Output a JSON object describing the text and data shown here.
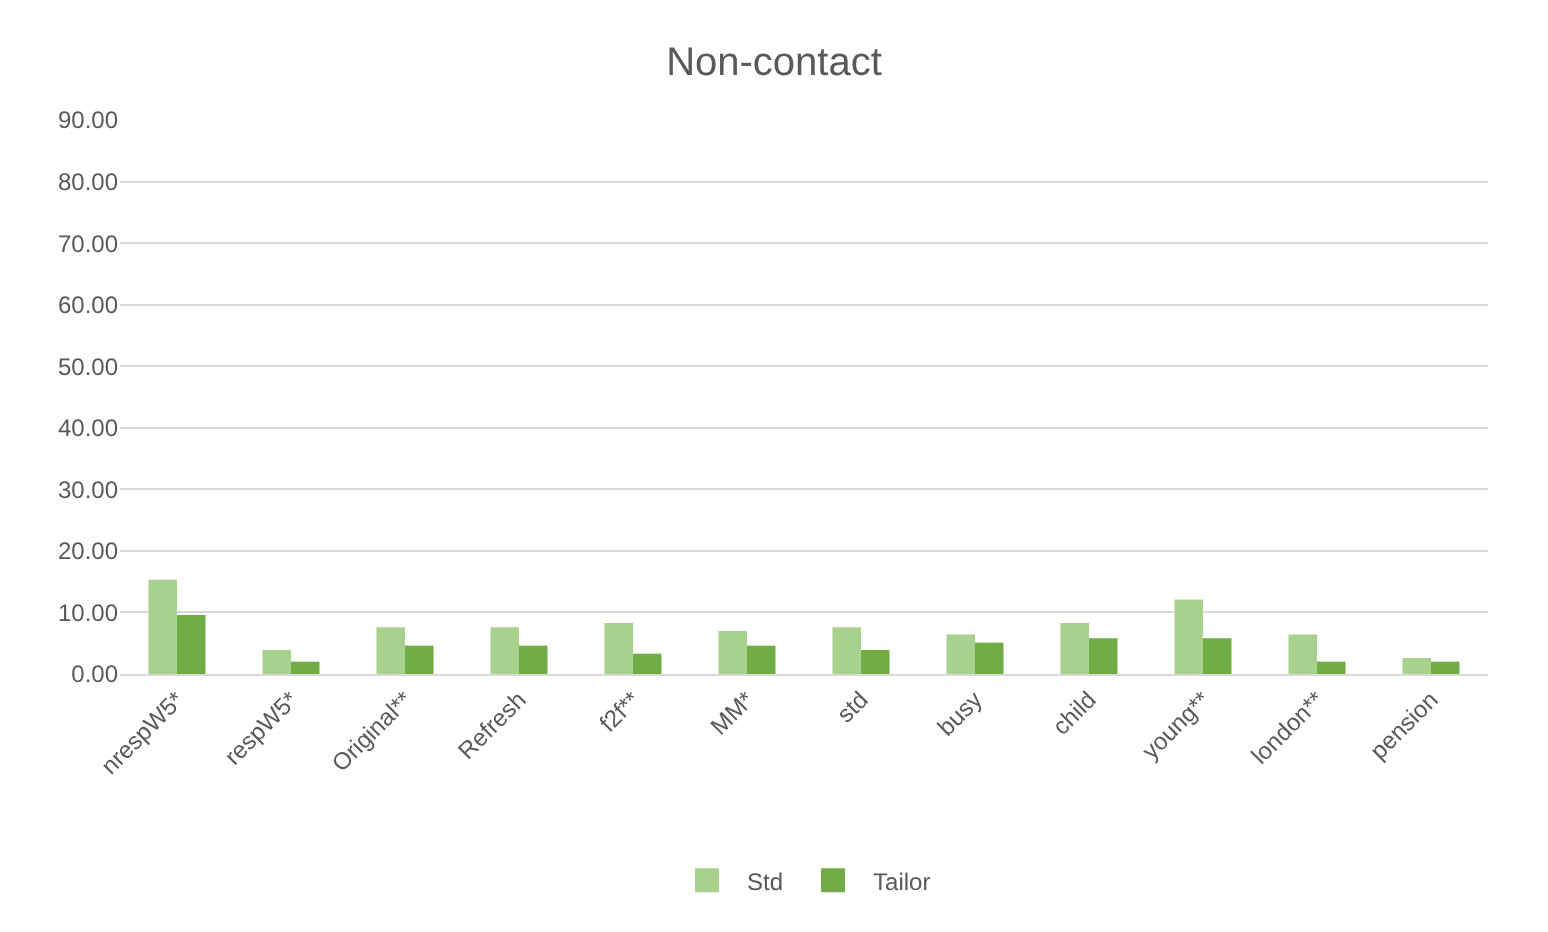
{
  "chart_data": {
    "type": "bar",
    "title": "Non-contact",
    "categories": [
      "nrespW5*",
      "respW5*",
      "Original**",
      "Refresh",
      "f2f**",
      "MM*",
      "std",
      "busy",
      "child",
      "young**",
      "london**",
      "pension"
    ],
    "series": [
      {
        "name": "Std",
        "color": "#a9d18e",
        "values": [
          15.3,
          3.9,
          7.6,
          7.6,
          8.3,
          7.0,
          7.6,
          6.4,
          8.3,
          12.1,
          6.4,
          2.6
        ]
      },
      {
        "name": "Tailor",
        "color": "#70ad47",
        "values": [
          9.6,
          2.0,
          4.6,
          4.6,
          3.3,
          4.6,
          3.9,
          5.1,
          5.8,
          5.8,
          2.0,
          2.0
        ]
      }
    ],
    "ylim": [
      0,
      90
    ],
    "yticks": [
      {
        "value": 0,
        "label": "0.00"
      },
      {
        "value": 10,
        "label": "10.00"
      },
      {
        "value": 20,
        "label": "20.00"
      },
      {
        "value": 30,
        "label": "30.00"
      },
      {
        "value": 40,
        "label": "40.00"
      },
      {
        "value": 50,
        "label": "50.00"
      },
      {
        "value": 60,
        "label": "60.00"
      },
      {
        "value": 70,
        "label": "70.00"
      },
      {
        "value": 80,
        "label": "80.00"
      },
      {
        "value": 90,
        "label": "90.00"
      }
    ],
    "grid": "y",
    "legend": "bottom"
  }
}
